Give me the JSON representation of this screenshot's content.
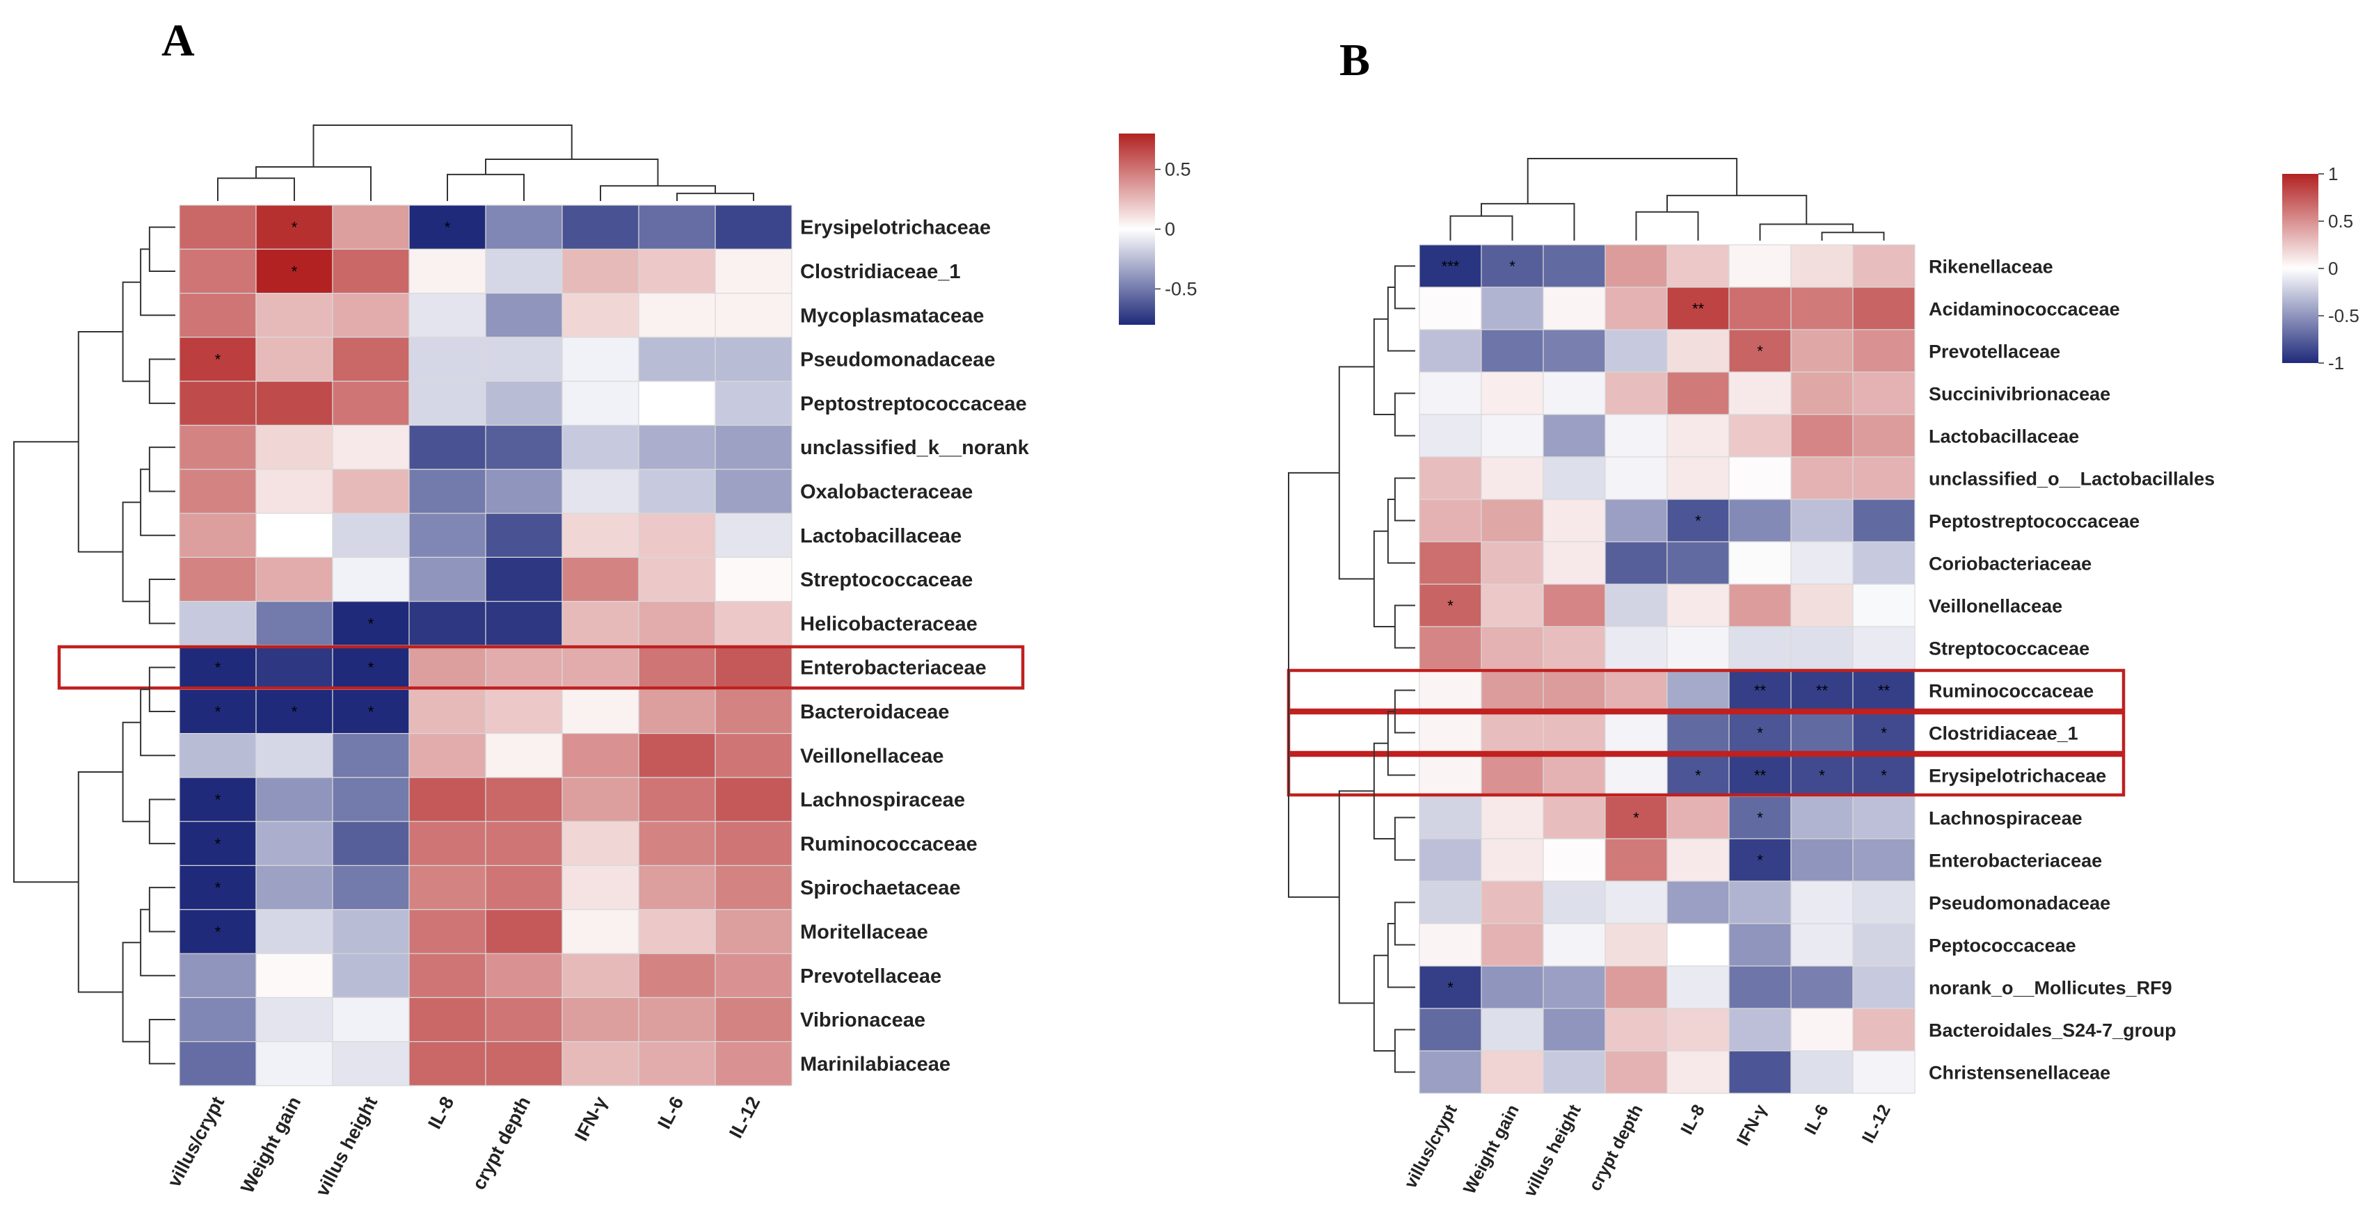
{
  "panels": [
    {
      "label": "A",
      "rows": [
        "Erysipelotrichaceae",
        "Clostridiaceae_1",
        "Mycoplasmataceae",
        "Pseudomonadaceae",
        "Peptostreptococcaceae",
        "unclassified_k__norank",
        "Oxalobacteraceae",
        "Lactobacillaceae",
        "Streptococcaceae",
        "Helicobacteraceae",
        "Enterobacteriaceae",
        "Bacteroidaceae",
        "Veillonellaceae",
        "Lachnospiraceae",
        "Ruminococcaceae",
        "Spirochaetaceae",
        "Moritellaceae",
        "Prevotellaceae",
        "Vibrionaceae",
        "Marinilabiaceae"
      ],
      "columns": [
        "villus/crypt",
        "Weight gain",
        "villus height",
        "IL-8",
        "crypt depth",
        "IFN-γ",
        "IL-6",
        "IL-12"
      ],
      "values": [
        [
          0.55,
          0.75,
          0.35,
          -0.85,
          -0.45,
          -0.65,
          -0.55,
          -0.7
        ],
        [
          0.5,
          0.8,
          0.55,
          0.05,
          -0.15,
          0.25,
          0.2,
          0.05
        ],
        [
          0.5,
          0.25,
          0.3,
          -0.1,
          -0.4,
          0.15,
          0.05,
          0.05
        ],
        [
          0.7,
          0.25,
          0.55,
          -0.15,
          -0.15,
          -0.05,
          -0.25,
          -0.25
        ],
        [
          0.65,
          0.65,
          0.5,
          -0.15,
          -0.25,
          -0.05,
          0.0,
          -0.2
        ],
        [
          0.45,
          0.15,
          0.08,
          -0.65,
          -0.6,
          -0.2,
          -0.3,
          -0.35
        ],
        [
          0.45,
          0.1,
          0.25,
          -0.5,
          -0.4,
          -0.1,
          -0.2,
          -0.35
        ],
        [
          0.35,
          0.0,
          -0.15,
          -0.45,
          -0.65,
          0.15,
          0.2,
          -0.1
        ],
        [
          0.45,
          0.3,
          -0.05,
          -0.4,
          -0.75,
          0.45,
          0.2,
          0.02
        ],
        [
          -0.2,
          -0.5,
          -0.85,
          -0.75,
          -0.75,
          0.25,
          0.3,
          0.2
        ],
        [
          -0.85,
          -0.75,
          -0.85,
          0.35,
          0.3,
          0.3,
          0.5,
          0.6
        ],
        [
          -0.85,
          -0.8,
          -0.85,
          0.25,
          0.2,
          0.05,
          0.35,
          0.45
        ],
        [
          -0.25,
          -0.15,
          -0.5,
          0.3,
          0.05,
          0.4,
          0.6,
          0.5
        ],
        [
          -0.85,
          -0.4,
          -0.5,
          0.6,
          0.55,
          0.35,
          0.5,
          0.6
        ],
        [
          -0.85,
          -0.3,
          -0.6,
          0.5,
          0.5,
          0.15,
          0.45,
          0.5
        ],
        [
          -0.85,
          -0.35,
          -0.5,
          0.45,
          0.5,
          0.1,
          0.35,
          0.45
        ],
        [
          -0.8,
          -0.15,
          -0.25,
          0.5,
          0.6,
          0.05,
          0.2,
          0.35
        ],
        [
          -0.4,
          0.02,
          -0.25,
          0.5,
          0.4,
          0.25,
          0.45,
          0.4
        ],
        [
          -0.45,
          -0.1,
          -0.05,
          0.55,
          0.5,
          0.35,
          0.35,
          0.45
        ],
        [
          -0.55,
          -0.05,
          -0.1,
          0.55,
          0.55,
          0.25,
          0.3,
          0.4
        ]
      ],
      "stars": [
        [
          "",
          "*",
          "",
          "*",
          "",
          "",
          "",
          ""
        ],
        [
          "",
          "*",
          "",
          "",
          "",
          "",
          "",
          ""
        ],
        [
          "",
          "",
          "",
          "",
          "",
          "",
          "",
          ""
        ],
        [
          "*",
          "",
          "",
          "",
          "",
          "",
          "",
          ""
        ],
        [
          "",
          "",
          "",
          "",
          "",
          "",
          "",
          ""
        ],
        [
          "",
          "",
          "",
          "",
          "",
          "",
          "",
          ""
        ],
        [
          "",
          "",
          "",
          "",
          "",
          "",
          "",
          ""
        ],
        [
          "",
          "",
          "",
          "",
          "",
          "",
          "",
          ""
        ],
        [
          "",
          "",
          "",
          "",
          "",
          "",
          "",
          ""
        ],
        [
          "",
          "",
          "*",
          "",
          "",
          "",
          "",
          ""
        ],
        [
          "*",
          "",
          "*",
          "",
          "",
          "",
          "",
          ""
        ],
        [
          "*",
          "*",
          "*",
          "",
          "",
          "",
          "",
          ""
        ],
        [
          "",
          "",
          "",
          "",
          "",
          "",
          "",
          ""
        ],
        [
          "*",
          "",
          "",
          "",
          "",
          "",
          "",
          ""
        ],
        [
          "*",
          "",
          "",
          "",
          "",
          "",
          "",
          ""
        ],
        [
          "*",
          "",
          "",
          "",
          "",
          "",
          "",
          ""
        ],
        [
          "*",
          "",
          "",
          "",
          "",
          "",
          "",
          ""
        ],
        [
          "",
          "",
          "",
          "",
          "",
          "",
          "",
          ""
        ],
        [
          "",
          "",
          "",
          "",
          "",
          "",
          "",
          ""
        ],
        [
          "",
          "",
          "",
          "",
          "",
          "",
          "",
          ""
        ]
      ],
      "highlight_rows": [
        "Enterobacteriaceae"
      ],
      "scale": {
        "limit": 0.8,
        "tick_labels": [
          "0.5",
          "0",
          "-0.5"
        ],
        "tick_values": [
          0.5,
          0,
          -0.5
        ]
      }
    },
    {
      "label": "B",
      "rows": [
        "Rikenellaceae",
        "Acidaminococcaceae",
        "Prevotellaceae",
        "Succinivibrionaceae",
        "Lactobacillaceae",
        "unclassified_o__Lactobacillales",
        "Peptostreptococcaceae",
        "Coriobacteriaceae",
        "Veillonellaceae",
        "Streptococcaceae",
        "Ruminococcaceae",
        "Clostridiaceae_1",
        "Erysipelotrichaceae",
        "Lachnospiraceae",
        "Enterobacteriaceae",
        "Pseudomonadaceae",
        "Peptococcaceae",
        "norank_o__Mollicutes_RF9",
        "Bacteroidales_S24-7_group",
        "Christensenellaceae"
      ],
      "columns": [
        "villus/crypt",
        "Weight gain",
        "villus height",
        "crypt depth",
        "IL-8",
        "IFN-γ",
        "IL-6",
        "IL-12"
      ],
      "values": [
        [
          -0.95,
          -0.75,
          -0.7,
          0.45,
          0.25,
          0.05,
          0.15,
          0.3
        ],
        [
          0.02,
          -0.35,
          0.05,
          0.35,
          0.85,
          0.65,
          0.6,
          0.7
        ],
        [
          -0.3,
          -0.65,
          -0.6,
          -0.25,
          0.15,
          0.7,
          0.4,
          0.5
        ],
        [
          -0.05,
          0.08,
          -0.05,
          0.3,
          0.6,
          0.1,
          0.4,
          0.35
        ],
        [
          -0.1,
          -0.05,
          -0.45,
          -0.05,
          0.1,
          0.25,
          0.55,
          0.45
        ],
        [
          0.3,
          0.1,
          -0.15,
          -0.05,
          0.1,
          0.02,
          0.35,
          0.35
        ],
        [
          0.35,
          0.4,
          0.1,
          -0.45,
          -0.8,
          -0.55,
          -0.3,
          -0.7
        ],
        [
          0.65,
          0.3,
          0.1,
          -0.75,
          -0.7,
          -0.02,
          -0.1,
          -0.25
        ],
        [
          0.7,
          0.25,
          0.55,
          -0.2,
          0.1,
          0.45,
          0.15,
          -0.03
        ],
        [
          0.55,
          0.35,
          0.3,
          -0.1,
          -0.05,
          -0.15,
          -0.15,
          -0.1
        ],
        [
          0.05,
          0.45,
          0.45,
          0.35,
          -0.4,
          -0.9,
          -0.9,
          -0.9
        ],
        [
          0.05,
          0.3,
          0.3,
          -0.05,
          -0.7,
          -0.8,
          -0.7,
          -0.85
        ],
        [
          0.05,
          0.5,
          0.35,
          -0.05,
          -0.8,
          -0.9,
          -0.85,
          -0.85
        ],
        [
          -0.2,
          0.1,
          0.3,
          0.75,
          0.35,
          -0.7,
          -0.35,
          -0.3
        ],
        [
          -0.3,
          0.1,
          0.02,
          0.6,
          0.1,
          -0.9,
          -0.5,
          -0.45
        ],
        [
          -0.2,
          0.3,
          -0.15,
          -0.1,
          -0.45,
          -0.35,
          -0.1,
          -0.15
        ],
        [
          0.05,
          0.35,
          -0.05,
          0.15,
          0.0,
          -0.5,
          -0.1,
          -0.2
        ],
        [
          -0.9,
          -0.5,
          -0.45,
          0.45,
          -0.1,
          -0.65,
          -0.6,
          -0.25
        ],
        [
          -0.7,
          -0.15,
          -0.5,
          0.25,
          0.2,
          -0.3,
          0.05,
          0.3
        ],
        [
          -0.45,
          0.2,
          -0.25,
          0.35,
          0.1,
          -0.8,
          -0.15,
          -0.05
        ]
      ],
      "stars": [
        [
          "***",
          "*",
          "",
          "",
          "",
          "",
          "",
          ""
        ],
        [
          "",
          "",
          "",
          "",
          "**",
          "",
          "",
          ""
        ],
        [
          "",
          "",
          "",
          "",
          "",
          "*",
          "",
          ""
        ],
        [
          "",
          "",
          "",
          "",
          "",
          "",
          "",
          ""
        ],
        [
          "",
          "",
          "",
          "",
          "",
          "",
          "",
          ""
        ],
        [
          "",
          "",
          "",
          "",
          "",
          "",
          "",
          ""
        ],
        [
          "",
          "",
          "",
          "",
          "*",
          "",
          "",
          ""
        ],
        [
          "",
          "",
          "",
          "",
          "",
          "",
          "",
          ""
        ],
        [
          "*",
          "",
          "",
          "",
          "",
          "",
          "",
          ""
        ],
        [
          "",
          "",
          "",
          "",
          "",
          "",
          "",
          ""
        ],
        [
          "",
          "",
          "",
          "",
          "",
          "**",
          "**",
          "**"
        ],
        [
          "",
          "",
          "",
          "",
          "",
          "*",
          "",
          "*"
        ],
        [
          "",
          "",
          "",
          "",
          "*",
          "**",
          "*",
          "*"
        ],
        [
          "",
          "",
          "",
          "*",
          "",
          "*",
          "",
          ""
        ],
        [
          "",
          "",
          "",
          "",
          "",
          "*",
          "",
          ""
        ],
        [
          "",
          "",
          "",
          "",
          "",
          "",
          "",
          ""
        ],
        [
          "",
          "",
          "",
          "",
          "",
          "",
          "",
          ""
        ],
        [
          "*",
          "",
          "",
          "",
          "",
          "",
          "",
          ""
        ],
        [
          "",
          "",
          "",
          "",
          "",
          "",
          "",
          ""
        ],
        [
          "",
          "",
          "",
          "",
          "",
          "",
          "",
          ""
        ]
      ],
      "highlight_rows": [
        "Ruminococcaceae",
        "Clostridiaceae_1",
        "Erysipelotrichaceae"
      ],
      "scale": {
        "limit": 1,
        "tick_labels": [
          "1",
          "0.5",
          "0",
          "-0.5",
          "-1"
        ],
        "tick_values": [
          1,
          0.5,
          0,
          -0.5,
          -1
        ]
      }
    }
  ],
  "chart_data": [
    {
      "type": "heatmap",
      "title": "A",
      "x": [
        "villus/crypt",
        "Weight gain",
        "villus height",
        "IL-8",
        "crypt depth",
        "IFN-γ",
        "IL-6",
        "IL-12"
      ],
      "y": [
        "Erysipelotrichaceae",
        "Clostridiaceae_1",
        "Mycoplasmataceae",
        "Pseudomonadaceae",
        "Peptostreptococcaceae",
        "unclassified_k__norank",
        "Oxalobacteraceae",
        "Lactobacillaceae",
        "Streptococcaceae",
        "Helicobacteraceae",
        "Enterobacteriaceae",
        "Bacteroidaceae",
        "Veillonellaceae",
        "Lachnospiraceae",
        "Ruminococcaceae",
        "Spirochaetaceae",
        "Moritellaceae",
        "Prevotellaceae",
        "Vibrionaceae",
        "Marinilabiaceae"
      ],
      "color_range": [
        -0.8,
        0.8
      ],
      "colors": {
        "low": "#1f2a7a",
        "mid": "#ffffff",
        "high": "#b22222"
      }
    },
    {
      "type": "heatmap",
      "title": "B",
      "x": [
        "villus/crypt",
        "Weight gain",
        "villus height",
        "crypt depth",
        "IL-8",
        "IFN-γ",
        "IL-6",
        "IL-12"
      ],
      "y": [
        "Rikenellaceae",
        "Acidaminococcaceae",
        "Prevotellaceae",
        "Succinivibrionaceae",
        "Lactobacillaceae",
        "unclassified_o__Lactobacillales",
        "Peptostreptococcaceae",
        "Coriobacteriaceae",
        "Veillonellaceae",
        "Streptococcaceae",
        "Ruminococcaceae",
        "Clostridiaceae_1",
        "Erysipelotrichaceae",
        "Lachnospiraceae",
        "Enterobacteriaceae",
        "Pseudomonadaceae",
        "Peptococcaceae",
        "norank_o__Mollicutes_RF9",
        "Bacteroidales_S24-7_group",
        "Christensenellaceae"
      ],
      "color_range": [
        -1,
        1
      ],
      "colors": {
        "low": "#1f2a7a",
        "mid": "#ffffff",
        "high": "#b22222"
      }
    }
  ]
}
